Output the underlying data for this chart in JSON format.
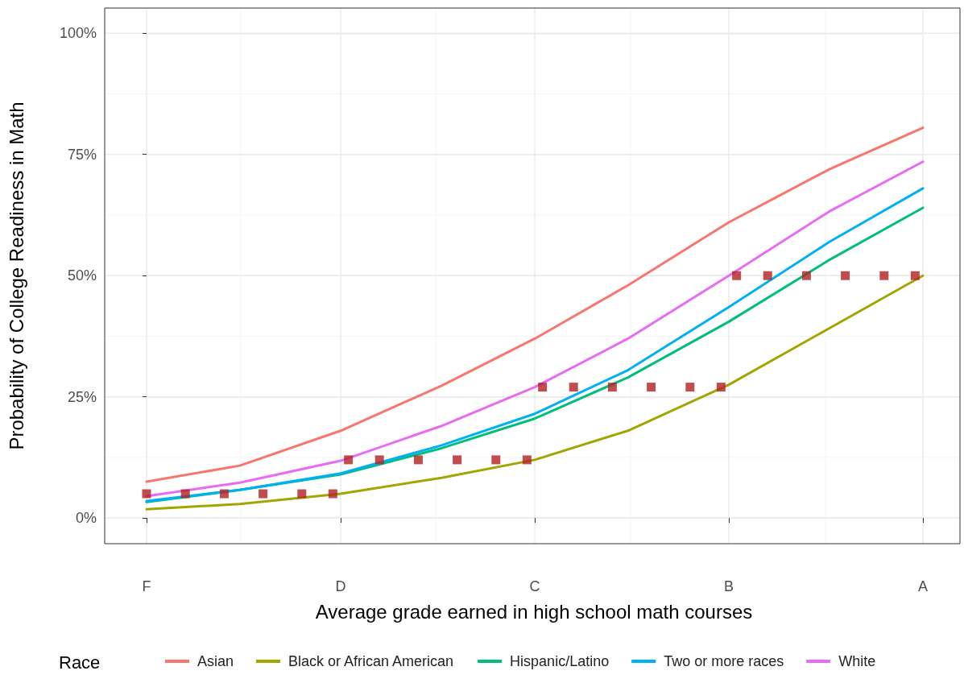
{
  "chart_data": {
    "type": "line",
    "xlabel": "Average grade earned in high school math courses",
    "ylabel": "Probability of College Readiness in Math",
    "legend_title": "Race",
    "legend": "bottom",
    "grid": true,
    "marker": "none",
    "line_style": "solid",
    "categories": [
      "F",
      null,
      null,
      null,
      null,
      null,
      null,
      null,
      null,
      null,
      null,
      null,
      null,
      null,
      null,
      null,
      null,
      null,
      null,
      null,
      null,
      null,
      null,
      null,
      null,
      "D",
      null,
      null,
      null,
      null,
      null,
      null,
      null,
      null,
      null,
      null,
      null,
      null,
      null,
      null,
      null,
      null,
      null,
      null,
      null,
      null,
      null,
      null,
      null,
      null,
      "C",
      null,
      null,
      null,
      null,
      null,
      null,
      null,
      null,
      null,
      null,
      null,
      null,
      null,
      null,
      null,
      null,
      null,
      null,
      null,
      null,
      null,
      null,
      null,
      null,
      "B",
      null,
      null,
      null,
      null,
      null,
      null,
      null,
      null,
      null,
      null,
      null,
      null,
      null,
      null,
      null,
      null,
      null,
      null,
      null,
      null,
      null,
      null,
      null,
      null,
      "A"
    ],
    "ylim": [
      -5.3,
      105.2
    ],
    "yticks": [
      {
        "value": 0,
        "label": "0%"
      },
      {
        "value": 25,
        "label": "25%"
      },
      {
        "value": 50,
        "label": "50%"
      },
      {
        "value": 75,
        "label": "75%"
      },
      {
        "value": 100,
        "label": "100%"
      }
    ],
    "series": [
      {
        "name": "Asian",
        "color": "#f8766d",
        "values": [
          7.5,
          null,
          null,
          null,
          null,
          null,
          null,
          null,
          null,
          null,
          null,
          null,
          10.8,
          null,
          null,
          null,
          null,
          null,
          null,
          null,
          null,
          null,
          null,
          null,
          null,
          18,
          null,
          null,
          null,
          null,
          null,
          null,
          null,
          null,
          null,
          null,
          null,
          null,
          27.3,
          null,
          null,
          null,
          null,
          null,
          null,
          null,
          null,
          null,
          null,
          null,
          37,
          null,
          null,
          null,
          null,
          null,
          null,
          null,
          null,
          null,
          null,
          null,
          48,
          null,
          null,
          null,
          null,
          null,
          null,
          null,
          null,
          null,
          null,
          null,
          null,
          61,
          null,
          null,
          null,
          null,
          null,
          null,
          null,
          null,
          null,
          null,
          null,
          null,
          72,
          null,
          null,
          null,
          null,
          null,
          null,
          null,
          null,
          null,
          null,
          null,
          80.5
        ]
      },
      {
        "name": "Black or African American",
        "color": "#a3a500",
        "values": [
          1.8,
          null,
          null,
          null,
          null,
          null,
          null,
          null,
          null,
          null,
          null,
          null,
          2.9,
          null,
          null,
          null,
          null,
          null,
          null,
          null,
          null,
          null,
          null,
          null,
          null,
          5,
          null,
          null,
          null,
          null,
          null,
          null,
          null,
          null,
          null,
          null,
          null,
          null,
          8.3,
          null,
          null,
          null,
          null,
          null,
          null,
          null,
          null,
          null,
          null,
          null,
          12,
          null,
          null,
          null,
          null,
          null,
          null,
          null,
          null,
          null,
          null,
          null,
          18,
          null,
          null,
          null,
          null,
          null,
          null,
          null,
          null,
          null,
          null,
          null,
          null,
          27.5,
          null,
          null,
          null,
          null,
          null,
          null,
          null,
          null,
          null,
          null,
          null,
          null,
          39.2,
          null,
          null,
          null,
          null,
          null,
          null,
          null,
          null,
          null,
          null,
          null,
          50
        ]
      },
      {
        "name": "Hispanic/Latino",
        "color": "#00bf7d",
        "values": [
          3.3,
          null,
          null,
          null,
          null,
          null,
          null,
          null,
          null,
          null,
          null,
          null,
          5.8,
          null,
          null,
          null,
          null,
          null,
          null,
          null,
          null,
          null,
          null,
          null,
          null,
          9,
          null,
          null,
          null,
          null,
          null,
          null,
          null,
          null,
          null,
          null,
          null,
          null,
          14.4,
          null,
          null,
          null,
          null,
          null,
          null,
          null,
          null,
          null,
          null,
          null,
          20.5,
          null,
          null,
          null,
          null,
          null,
          null,
          null,
          null,
          null,
          null,
          null,
          29,
          null,
          null,
          null,
          null,
          null,
          null,
          null,
          null,
          null,
          null,
          null,
          null,
          40.5,
          null,
          null,
          null,
          null,
          null,
          null,
          null,
          null,
          null,
          null,
          null,
          null,
          53.3,
          null,
          null,
          null,
          null,
          null,
          null,
          null,
          null,
          null,
          null,
          null,
          64
        ]
      },
      {
        "name": "Two or more races",
        "color": "#00b0f6",
        "values": [
          3.5,
          null,
          null,
          null,
          null,
          null,
          null,
          null,
          null,
          null,
          null,
          null,
          5.8,
          null,
          null,
          null,
          null,
          null,
          null,
          null,
          null,
          null,
          null,
          null,
          null,
          9.2,
          null,
          null,
          null,
          null,
          null,
          null,
          null,
          null,
          null,
          null,
          null,
          null,
          15,
          null,
          null,
          null,
          null,
          null,
          null,
          null,
          null,
          null,
          null,
          null,
          21.5,
          null,
          null,
          null,
          null,
          null,
          null,
          null,
          null,
          null,
          null,
          null,
          30.5,
          null,
          null,
          null,
          null,
          null,
          null,
          null,
          null,
          null,
          null,
          null,
          null,
          43.5,
          null,
          null,
          null,
          null,
          null,
          null,
          null,
          null,
          null,
          null,
          null,
          null,
          57,
          null,
          null,
          null,
          null,
          null,
          null,
          null,
          null,
          null,
          null,
          null,
          68
        ]
      },
      {
        "name": "White",
        "color": "#e76bf3",
        "values": [
          4.5,
          null,
          null,
          null,
          null,
          null,
          null,
          null,
          null,
          null,
          null,
          null,
          7.3,
          null,
          null,
          null,
          null,
          null,
          null,
          null,
          null,
          null,
          null,
          null,
          null,
          11.8,
          null,
          null,
          null,
          null,
          null,
          null,
          null,
          null,
          null,
          null,
          null,
          null,
          19,
          null,
          null,
          null,
          null,
          null,
          null,
          null,
          null,
          null,
          null,
          null,
          27,
          null,
          null,
          null,
          null,
          null,
          null,
          null,
          null,
          null,
          null,
          null,
          37,
          null,
          null,
          null,
          null,
          null,
          null,
          null,
          null,
          null,
          null,
          null,
          null,
          50,
          null,
          null,
          null,
          null,
          null,
          null,
          null,
          null,
          null,
          null,
          null,
          null,
          63.3,
          null,
          null,
          null,
          null,
          null,
          null,
          null,
          null,
          null,
          null,
          null,
          73.5
        ]
      },
      {
        "type": "scatter",
        "marker": "square",
        "color": "#b22222",
        "values": [
          5,
          null,
          null,
          null,
          null,
          5,
          null,
          null,
          null,
          null,
          5,
          null,
          null,
          null,
          null,
          5,
          null,
          null,
          null,
          null,
          5,
          null,
          null,
          null,
          5,
          null,
          12,
          null,
          null,
          null,
          12,
          null,
          null,
          null,
          null,
          12,
          null,
          null,
          null,
          null,
          12,
          null,
          null,
          null,
          null,
          12,
          null,
          null,
          null,
          12,
          null,
          27,
          null,
          null,
          null,
          27,
          null,
          null,
          null,
          null,
          27,
          null,
          null,
          null,
          null,
          27,
          null,
          null,
          null,
          null,
          27,
          null,
          null,
          null,
          27,
          null,
          50,
          null,
          null,
          null,
          50,
          null,
          null,
          null,
          null,
          50,
          null,
          null,
          null,
          null,
          50,
          null,
          null,
          null,
          null,
          50,
          null,
          null,
          null,
          50,
          null
        ]
      }
    ]
  }
}
